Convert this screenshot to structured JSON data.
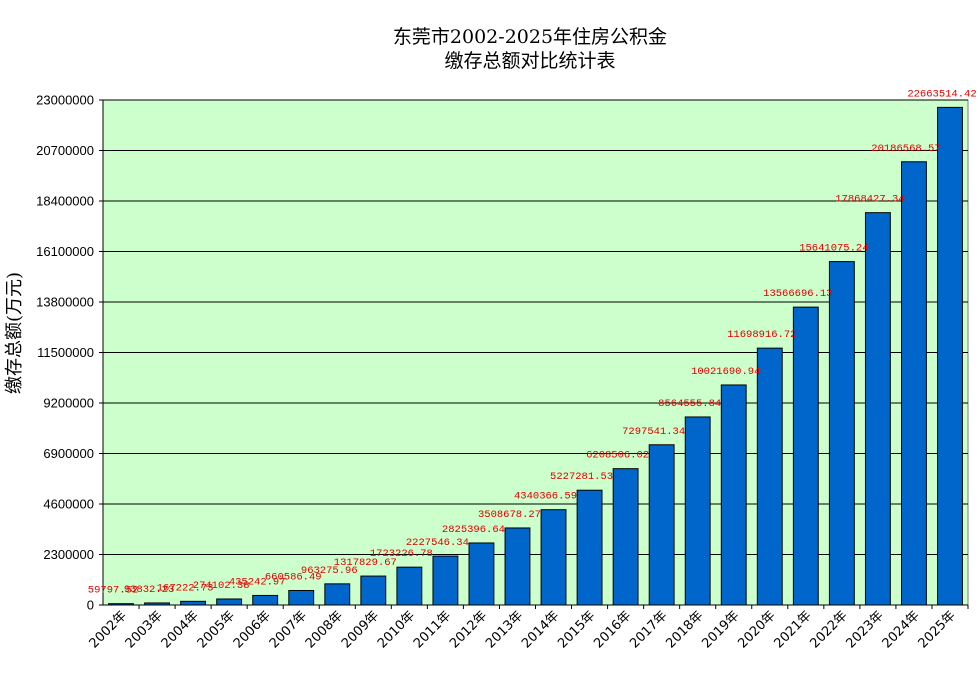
{
  "chart_data": {
    "type": "bar",
    "title": [
      "东莞市2002-2025年住房公积金",
      "缴存总额对比统计表"
    ],
    "xlabel": "",
    "ylabel": "缴存总额(万元)",
    "ylim": [
      0,
      23000000
    ],
    "yticks": [
      0,
      2300000,
      4600000,
      6900000,
      9200000,
      11500000,
      13800000,
      16100000,
      18400000,
      20700000,
      23000000
    ],
    "ytick_labels": [
      "0",
      "2300000",
      "4600000",
      "6900000",
      "9200000",
      "11500000",
      "13800000",
      "16100000",
      "18400000",
      "20700000",
      "23000000"
    ],
    "grid": true,
    "categories": [
      "2002年",
      "2003年",
      "2004年",
      "2005年",
      "2006年",
      "2007年",
      "2008年",
      "2009年",
      "2010年",
      "2011年",
      "2012年",
      "2013年",
      "2014年",
      "2015年",
      "2016年",
      "2017年",
      "2018年",
      "2019年",
      "2020年",
      "2021年",
      "2022年",
      "2023年",
      "2024年",
      "2025年"
    ],
    "values": [
      59797.52,
      93832.23,
      167222.73,
      274102.38,
      435242.97,
      660586.49,
      963275.96,
      1317829.67,
      1723226.78,
      2227546.34,
      2825396.64,
      3508678.27,
      4340366.59,
      5227281.53,
      6208506.02,
      7297541.34,
      8564555.84,
      10021690.94,
      11698916.72,
      13566696.13,
      15641075.24,
      17868427.34,
      20186568.57,
      22663514.42
    ],
    "value_labels": [
      "59797.52",
      "93832.23",
      "167222.73",
      "274102.38",
      "435242.97",
      "660586.49",
      "963275.96",
      "1317829.67",
      "1723226.78",
      "2227546.34",
      "2825396.64",
      "3508678.27",
      "4340366.59",
      "5227281.53",
      "6208506.02",
      "7297541.34",
      "8564555.84",
      "10021690.94",
      "11698916.72",
      "13566696.13",
      "15641075.24",
      "17868427.34",
      "20186568.57",
      "22663514.42"
    ],
    "colors": {
      "plot_bg": "#ccffcc",
      "bar_fill": "#0066cc",
      "bar_stroke": "#000000",
      "grid": "#000000",
      "data_label": "#e00000"
    }
  }
}
